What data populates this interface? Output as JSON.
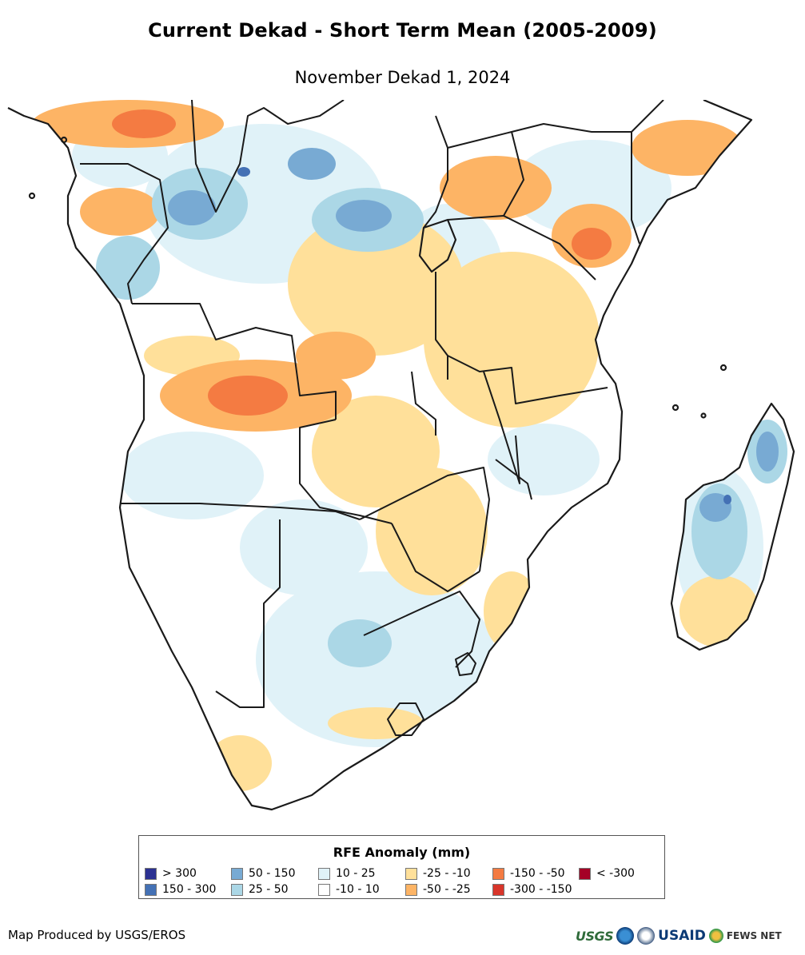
{
  "map": {
    "title": "Current Dekad - Short Term Mean (2005-2009)",
    "subtitle": "November Dekad 1, 2024",
    "region": "Southern and Eastern Africa"
  },
  "legend": {
    "title": "RFE Anomaly (mm)",
    "items": [
      {
        "label": "> 300",
        "color": "#2b3191"
      },
      {
        "label": "150 - 300",
        "color": "#4471b5"
      },
      {
        "label": "50 - 150",
        "color": "#78aad3"
      },
      {
        "label": "25 - 50",
        "color": "#abd7e6"
      },
      {
        "label": "10 - 25",
        "color": "#e0f2f8"
      },
      {
        "label": "-10 - 10",
        "color": "#ffffff"
      },
      {
        "label": "-25 - -10",
        "color": "#ffe09a"
      },
      {
        "label": "-50 - -25",
        "color": "#fdb465"
      },
      {
        "label": "-150 - -50",
        "color": "#f47b42"
      },
      {
        "label": "-300 - -150",
        "color": "#d8352a"
      },
      {
        "label": "< -300",
        "color": "#a50026"
      }
    ]
  },
  "footer": {
    "credit": "Map Produced by USGS/EROS",
    "logos": {
      "usgs": "USGS",
      "usaid": "USAID",
      "fews": "FEWS NET"
    }
  },
  "colors": {
    "border": "#1a1a1a",
    "land": "#ffffff"
  }
}
